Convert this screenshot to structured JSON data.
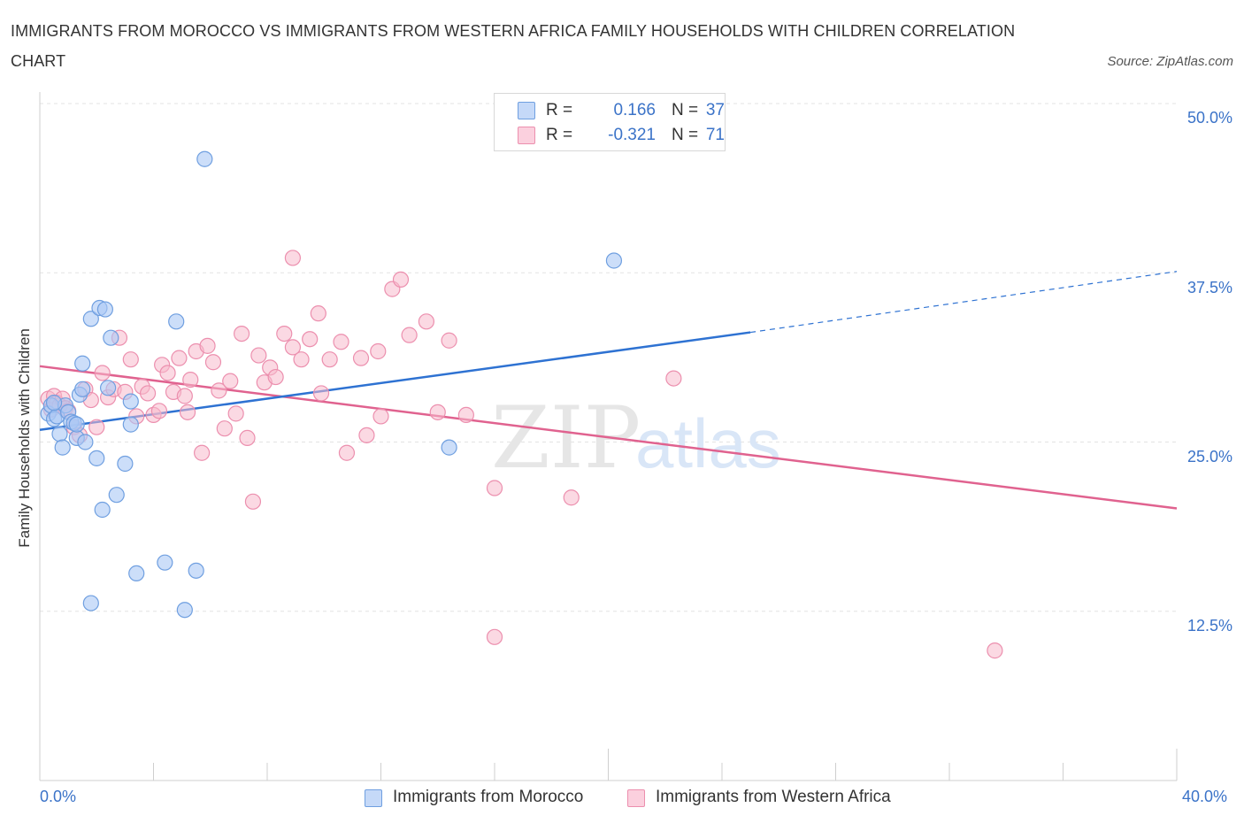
{
  "title": "IMMIGRANTS FROM MOROCCO VS IMMIGRANTS FROM WESTERN AFRICA FAMILY HOUSEHOLDS WITH CHILDREN CORRELATION CHART",
  "source": "Source: ZipAtlas.com",
  "watermark": {
    "zip": "ZIP",
    "atlas": "atlas"
  },
  "legend": {
    "r_label": "R =",
    "n_label": "N =",
    "rows": [
      {
        "r": "0.166",
        "n": "37",
        "color": "#aac8f5"
      },
      {
        "r": "-0.321",
        "n": "71",
        "color": "#f7b9cc"
      }
    ]
  },
  "bottom_legend": [
    "Immigrants from Morocco",
    "Immigrants from Western Africa"
  ],
  "x_axis": {
    "min_label": "0.0%",
    "max_label": "40.0%"
  },
  "y_ticks": [
    "50.0%",
    "37.5%",
    "25.0%",
    "12.5%"
  ],
  "colors": {
    "blue_fill": "#aac8f5",
    "blue_stroke": "#6f9fe0",
    "blue_line": "#2e72d2",
    "pink_fill": "#f7b9cc",
    "pink_stroke": "#ec8fae",
    "pink_line": "#e0628f",
    "axis_text": "#3b73c8",
    "grid": "#e3e3e3"
  },
  "chart_data": {
    "type": "scatter",
    "xlabel": "",
    "ylabel": "Family Households with Children",
    "xlim": [
      0,
      40
    ],
    "ylim": [
      0,
      50
    ],
    "grid": true,
    "legend_placement": "top-center",
    "series": [
      {
        "name": "Immigrants from Morocco",
        "r": 0.166,
        "n": 37,
        "trend": {
          "x": [
            0,
            25
          ],
          "y": [
            25.9,
            33.1
          ],
          "dashed_to": [
            40,
            37.6
          ]
        },
        "points": [
          [
            0.3,
            27.1
          ],
          [
            0.4,
            27.7
          ],
          [
            0.5,
            26.7
          ],
          [
            0.6,
            26.9
          ],
          [
            0.7,
            25.6
          ],
          [
            0.8,
            24.6
          ],
          [
            0.9,
            27.7
          ],
          [
            1.0,
            27.2
          ],
          [
            1.1,
            26.5
          ],
          [
            1.2,
            26.4
          ],
          [
            1.3,
            25.3
          ],
          [
            1.4,
            28.5
          ],
          [
            1.5,
            28.9
          ],
          [
            1.5,
            30.8
          ],
          [
            1.6,
            25.0
          ],
          [
            1.8,
            34.1
          ],
          [
            2.0,
            23.8
          ],
          [
            2.1,
            34.9
          ],
          [
            2.2,
            20.0
          ],
          [
            2.3,
            34.8
          ],
          [
            2.4,
            29.0
          ],
          [
            2.5,
            32.7
          ],
          [
            2.7,
            21.1
          ],
          [
            3.0,
            23.4
          ],
          [
            3.2,
            28.0
          ],
          [
            3.2,
            26.3
          ],
          [
            3.4,
            15.3
          ],
          [
            4.4,
            16.1
          ],
          [
            4.8,
            33.9
          ],
          [
            5.1,
            12.6
          ],
          [
            5.5,
            15.5
          ],
          [
            5.8,
            45.9
          ],
          [
            1.8,
            13.1
          ],
          [
            20.2,
            38.4
          ],
          [
            14.4,
            24.6
          ],
          [
            0.5,
            27.9
          ],
          [
            1.3,
            26.3
          ]
        ]
      },
      {
        "name": "Immigrants from Western Africa",
        "r": -0.321,
        "n": 71,
        "trend": {
          "x": [
            0,
            40
          ],
          "y": [
            30.6,
            20.1
          ]
        },
        "points": [
          [
            0.3,
            28.2
          ],
          [
            0.4,
            27.4
          ],
          [
            0.5,
            28.4
          ],
          [
            0.6,
            27.9
          ],
          [
            0.7,
            27.7
          ],
          [
            0.8,
            28.2
          ],
          [
            0.9,
            27.5
          ],
          [
            1.0,
            27.3
          ],
          [
            1.2,
            26.1
          ],
          [
            1.4,
            25.5
          ],
          [
            1.6,
            28.9
          ],
          [
            1.8,
            28.1
          ],
          [
            2.0,
            26.1
          ],
          [
            2.2,
            30.1
          ],
          [
            2.4,
            28.3
          ],
          [
            2.6,
            28.9
          ],
          [
            2.8,
            32.7
          ],
          [
            3.0,
            28.7
          ],
          [
            3.2,
            31.1
          ],
          [
            3.4,
            26.9
          ],
          [
            3.6,
            29.1
          ],
          [
            3.8,
            28.6
          ],
          [
            4.0,
            27.0
          ],
          [
            4.2,
            27.3
          ],
          [
            4.3,
            30.7
          ],
          [
            4.5,
            30.1
          ],
          [
            4.7,
            28.7
          ],
          [
            4.9,
            31.2
          ],
          [
            5.1,
            28.4
          ],
          [
            5.2,
            27.2
          ],
          [
            5.3,
            29.6
          ],
          [
            5.5,
            31.7
          ],
          [
            5.7,
            24.2
          ],
          [
            5.9,
            32.1
          ],
          [
            6.1,
            30.9
          ],
          [
            6.3,
            28.8
          ],
          [
            6.5,
            26.0
          ],
          [
            6.7,
            29.5
          ],
          [
            6.9,
            27.1
          ],
          [
            7.1,
            33.0
          ],
          [
            7.3,
            25.3
          ],
          [
            7.5,
            20.6
          ],
          [
            7.7,
            31.4
          ],
          [
            7.9,
            29.4
          ],
          [
            8.1,
            30.5
          ],
          [
            8.3,
            29.8
          ],
          [
            8.6,
            33.0
          ],
          [
            8.9,
            32.0
          ],
          [
            8.9,
            38.6
          ],
          [
            9.2,
            31.1
          ],
          [
            9.5,
            32.6
          ],
          [
            9.8,
            34.5
          ],
          [
            9.9,
            28.6
          ],
          [
            10.2,
            31.1
          ],
          [
            10.6,
            32.4
          ],
          [
            10.8,
            24.2
          ],
          [
            11.3,
            31.2
          ],
          [
            11.5,
            25.5
          ],
          [
            11.9,
            31.7
          ],
          [
            12.0,
            26.9
          ],
          [
            12.4,
            36.3
          ],
          [
            12.7,
            37.0
          ],
          [
            13.0,
            32.9
          ],
          [
            13.6,
            33.9
          ],
          [
            14.0,
            27.2
          ],
          [
            14.4,
            32.5
          ],
          [
            15.0,
            27.0
          ],
          [
            16.0,
            10.6
          ],
          [
            16.0,
            21.6
          ],
          [
            18.7,
            20.9
          ],
          [
            22.3,
            29.7
          ],
          [
            33.6,
            9.6
          ]
        ]
      }
    ]
  }
}
